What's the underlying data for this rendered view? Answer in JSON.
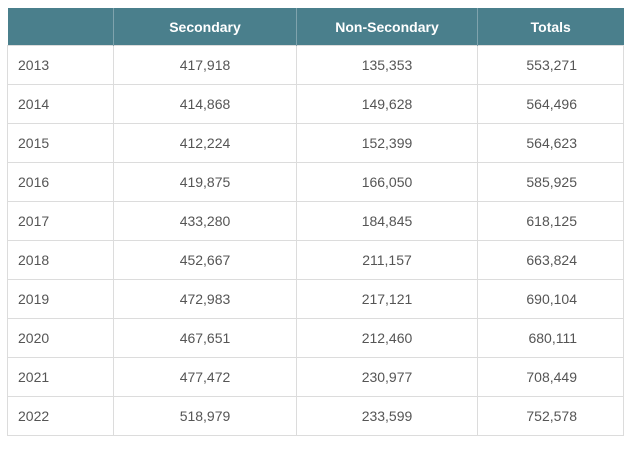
{
  "table": {
    "headers": [
      "",
      "Secondary",
      "Non-Secondary",
      "Totals"
    ],
    "rows": [
      {
        "year": "2013",
        "secondary": "417,918",
        "non_secondary": "135,353",
        "totals": "553,271"
      },
      {
        "year": "2014",
        "secondary": "414,868",
        "non_secondary": "149,628",
        "totals": "564,496"
      },
      {
        "year": "2015",
        "secondary": "412,224",
        "non_secondary": "152,399",
        "totals": "564,623"
      },
      {
        "year": "2016",
        "secondary": "419,875",
        "non_secondary": "166,050",
        "totals": "585,925"
      },
      {
        "year": "2017",
        "secondary": "433,280",
        "non_secondary": "184,845",
        "totals": "618,125"
      },
      {
        "year": "2018",
        "secondary": "452,667",
        "non_secondary": "211,157",
        "totals": "663,824"
      },
      {
        "year": "2019",
        "secondary": "472,983",
        "non_secondary": "217,121",
        "totals": "690,104"
      },
      {
        "year": "2020",
        "secondary": "467,651",
        "non_secondary": "212,460",
        "totals": "680,111"
      },
      {
        "year": "2021",
        "secondary": "477,472",
        "non_secondary": "230,977",
        "totals": "708,449"
      },
      {
        "year": "2022",
        "secondary": "518,979",
        "non_secondary": "233,599",
        "totals": "752,578"
      }
    ]
  },
  "colors": {
    "header_bg": "#4a7f8c",
    "header_text": "#ffffff",
    "cell_text": "#555555",
    "border": "#dcdcdc"
  }
}
